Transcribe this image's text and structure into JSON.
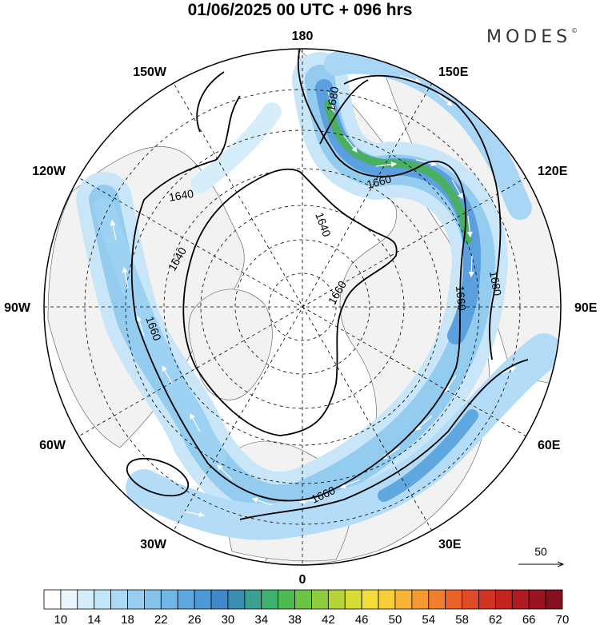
{
  "title": "01/06/2025  00 UTC  + 096 hrs",
  "brand": "MODES",
  "brand_mark": "©",
  "longitude_labels": {
    "lon_180": "180",
    "lon_150e": "150E",
    "lon_120e": "120E",
    "lon_90e": "90E",
    "lon_60e": "60E",
    "lon_30e": "30E",
    "lon_0": "0",
    "lon_30w": "30W",
    "lon_60w": "60W",
    "lon_90w": "90W",
    "lon_120w": "120W",
    "lon_150w": "150W"
  },
  "contour_labels": [
    "1680",
    "1660",
    "1640",
    "1640",
    "1660",
    "1640",
    "1660",
    "1680",
    "1660",
    "1660"
  ],
  "vector_reference": {
    "label": "50"
  },
  "colorbar": {
    "tick_labels": [
      "10",
      "14",
      "18",
      "22",
      "26",
      "30",
      "34",
      "38",
      "42",
      "46",
      "50",
      "54",
      "58",
      "62",
      "66",
      "70"
    ],
    "colors": [
      "#ffffff",
      "#eaf6fc",
      "#d6eefa",
      "#c2e5f8",
      "#acdaf4",
      "#98cff1",
      "#84c3ec",
      "#70b6e6",
      "#5ea8df",
      "#4d99d6",
      "#3f89ca",
      "#3a8cb0",
      "#3aa090",
      "#3eb070",
      "#4fba50",
      "#6cc445",
      "#8fcc3e",
      "#b4d43a",
      "#d8dc37",
      "#f2de3a",
      "#f8cd3a",
      "#f8b535",
      "#f69a30",
      "#f17e2c",
      "#ea6228",
      "#e04a26",
      "#d23424",
      "#c22422",
      "#b01a22",
      "#9a1320",
      "#86101e"
    ]
  }
}
